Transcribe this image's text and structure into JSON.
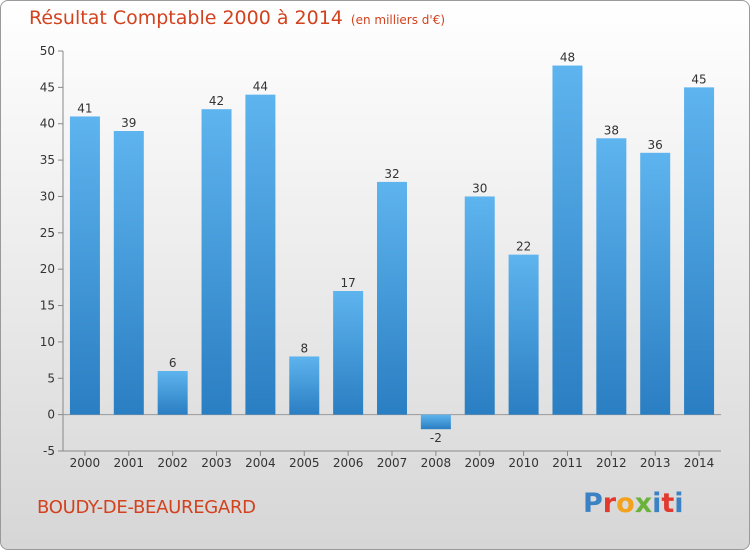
{
  "header": {
    "title": "Résultat Comptable 2000 à 2014",
    "subtitle": "(en milliers d'€)"
  },
  "footer": {
    "commune": "BOUDY-DE-BEAUREGARD",
    "brand_letters": [
      "P",
      "r",
      "o",
      "x",
      "i",
      "t",
      "i"
    ],
    "brand_colors": [
      "#3b82c4",
      "#e23a2e",
      "#f2a21c",
      "#6ab23c",
      "#3b82c4",
      "#e23a2e",
      "#3b82c4"
    ]
  },
  "colors": {
    "bar_top": "#5eb4ee",
    "bar_bottom": "#2a7ec2",
    "title": "#d3421f",
    "text": "#333333"
  },
  "chart_data": {
    "type": "bar",
    "categories": [
      "2000",
      "2001",
      "2002",
      "2003",
      "2004",
      "2005",
      "2006",
      "2007",
      "2008",
      "2009",
      "2010",
      "2011",
      "2012",
      "2013",
      "2014"
    ],
    "values": [
      41,
      39,
      6,
      42,
      44,
      8,
      17,
      32,
      -2,
      30,
      22,
      48,
      38,
      36,
      45
    ],
    "yticks": [
      -5,
      0,
      5,
      10,
      15,
      20,
      25,
      30,
      35,
      40,
      45,
      50
    ],
    "ylim": [
      -5,
      50
    ],
    "grid": false,
    "legend": "none"
  }
}
